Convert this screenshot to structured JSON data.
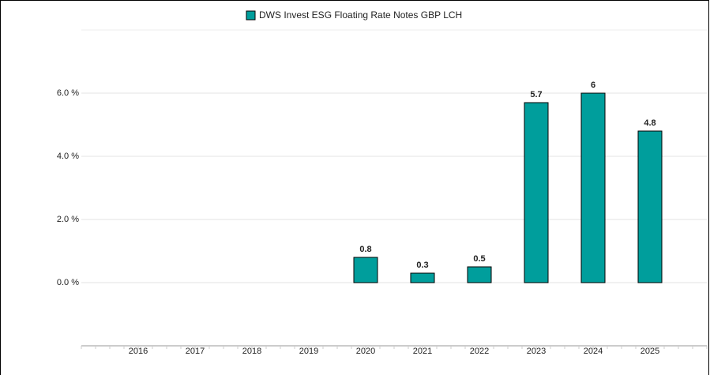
{
  "chart_data": {
    "type": "bar",
    "categories": [
      "2016",
      "2017",
      "2018",
      "2019",
      "2020",
      "2021",
      "2022",
      "2023",
      "2024",
      "2025"
    ],
    "series": [
      {
        "name": "DWS Invest ESG Floating Rate Notes GBP LCH",
        "color": "#009e9c",
        "values": [
          null,
          null,
          null,
          null,
          0.8,
          0.3,
          0.5,
          5.7,
          6.0,
          4.8
        ]
      }
    ],
    "ylim": [
      -2,
      8
    ],
    "yticks": [
      {
        "value": 0,
        "label": "0.0 %"
      },
      {
        "value": 2,
        "label": "2.0 %"
      },
      {
        "value": 4,
        "label": "4.0 %"
      },
      {
        "value": 6,
        "label": "6.0 %"
      }
    ],
    "grid": true
  }
}
